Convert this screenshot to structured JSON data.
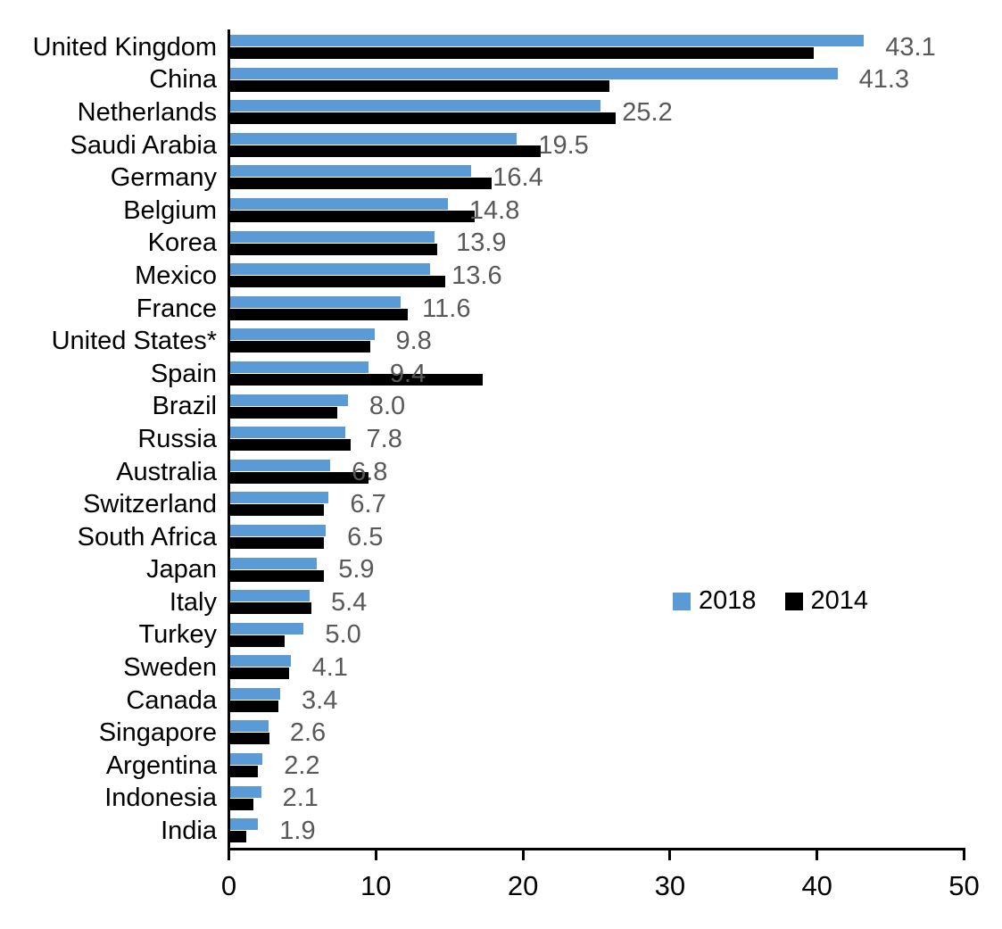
{
  "chart_data": {
    "type": "bar",
    "orientation": "horizontal",
    "title": "",
    "xlabel": "",
    "ylabel": "",
    "categories": [
      "United Kingdom",
      "China",
      "Netherlands",
      "Saudi Arabia",
      "Germany",
      "Belgium",
      "Korea",
      "Mexico",
      "France",
      "United States*",
      "Spain",
      "Brazil",
      "Russia",
      "Australia",
      "Switzerland",
      "South Africa",
      "Japan",
      "Italy",
      "Turkey",
      "Sweden",
      "Canada",
      "Singapore",
      "Argentina",
      "Indonesia",
      "India"
    ],
    "series": [
      {
        "name": "2018",
        "color": "#5B9BD5",
        "values": [
          43.1,
          41.3,
          25.2,
          19.5,
          16.4,
          14.8,
          13.9,
          13.6,
          11.6,
          9.8,
          9.4,
          8.0,
          7.8,
          6.8,
          6.7,
          6.5,
          5.9,
          5.4,
          5.0,
          4.1,
          3.4,
          2.6,
          2.2,
          2.1,
          1.9
        ]
      },
      {
        "name": "2014",
        "color": "#000000",
        "values": [
          39.7,
          25.8,
          26.2,
          21.1,
          17.8,
          16.6,
          14.1,
          14.6,
          12.1,
          9.5,
          17.2,
          7.3,
          8.2,
          9.4,
          6.4,
          6.4,
          6.4,
          5.5,
          3.7,
          4.0,
          3.3,
          2.7,
          1.9,
          1.6,
          1.1
        ]
      }
    ],
    "data_labels": {
      "attached_series": "2018",
      "color": "#595959",
      "values": [
        "43.1",
        "41.3",
        "25.2",
        "19.5",
        "16.4",
        "14.8",
        "13.9",
        "13.6",
        "11.6",
        "9.8",
        "9.4",
        "8.0",
        "7.8",
        "6.8",
        "6.7",
        "6.5",
        "5.9",
        "5.4",
        "5.0",
        "4.1",
        "3.4",
        "2.6",
        "2.2",
        "2.1",
        "1.9"
      ]
    },
    "xlim": [
      0,
      50
    ],
    "xticks": [
      "0",
      "10",
      "20",
      "30",
      "40",
      "50"
    ],
    "grid": false,
    "legend": {
      "entries": [
        "2018",
        "2014"
      ],
      "position": "middle-right"
    }
  },
  "colors": {
    "series_2018": "#5B9BD5",
    "series_2014": "#000000",
    "data_label": "#595959",
    "axis": "#000000",
    "background": "#ffffff"
  }
}
